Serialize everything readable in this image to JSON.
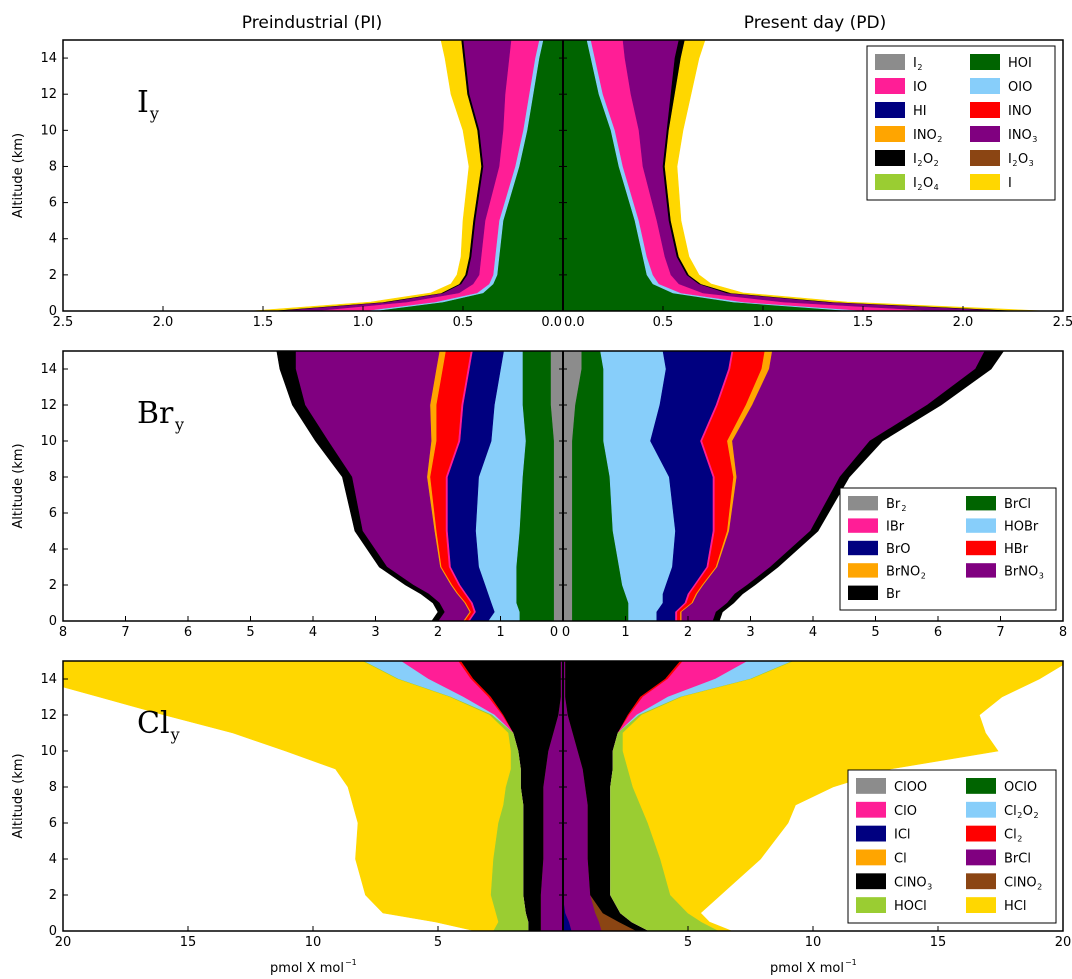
{
  "headers": {
    "left": "Preindustrial (PI)",
    "right": "Present day (PD)"
  },
  "chart_data": [
    {
      "type": "area",
      "panel_title": "I",
      "panel_sub": "y",
      "ylabel": "Altitude (km)",
      "xlabel": "",
      "xlim": 2.5,
      "ylim": [
        0,
        15
      ],
      "xticks": [
        "2.5",
        "2.0",
        "1.5",
        "1.0",
        "0.5",
        "0.0",
        "0.0",
        "0.5",
        "1.0",
        "1.5",
        "2.0",
        "2.5"
      ],
      "yticks": [
        "0",
        "2",
        "4",
        "6",
        "8",
        "10",
        "12",
        "14"
      ],
      "altitudes": [
        0,
        0.5,
        1,
        1.5,
        2,
        3,
        5,
        8,
        10,
        12,
        14,
        15
      ],
      "legend": [
        {
          "label": "I",
          "sub": "2",
          "color": "#8c8c8c"
        },
        {
          "label": "IO",
          "sub": "",
          "color": "#ff1e96"
        },
        {
          "label": "HI",
          "sub": "",
          "color": "#000080"
        },
        {
          "label": "INO",
          "sub": "2",
          "color": "#ffa500"
        },
        {
          "label": "I",
          "sub": "2",
          "label2": "O",
          "sub2": "2",
          "color": "#000000"
        },
        {
          "label": "I",
          "sub": "2",
          "label2": "O",
          "sub2": "4",
          "color": "#9acd32"
        },
        {
          "label": "HOI",
          "sub": "",
          "color": "#006400"
        },
        {
          "label": "OIO",
          "sub": "",
          "color": "#87cefa"
        },
        {
          "label": "INO",
          "sub": "",
          "color": "#ff0000"
        },
        {
          "label": "INO",
          "sub": "3",
          "color": "#800080"
        },
        {
          "label": "I",
          "sub": "2",
          "label2": "O",
          "sub2": "3",
          "color": "#8b4513"
        },
        {
          "label": "I",
          "sub": "",
          "color": "#ffd700"
        }
      ],
      "series": [
        {
          "name": "HOI",
          "color": "#006400",
          "pi": [
            0.95,
            0.6,
            0.4,
            0.35,
            0.33,
            0.32,
            0.3,
            0.22,
            0.18,
            0.15,
            0.12,
            0.1
          ],
          "pd": [
            1.45,
            0.85,
            0.55,
            0.45,
            0.42,
            0.4,
            0.36,
            0.28,
            0.24,
            0.18,
            0.14,
            0.12
          ]
        },
        {
          "name": "OIO",
          "color": "#87cefa",
          "pi": [
            0.05,
            0.04,
            0.03,
            0.02,
            0.02,
            0.02,
            0.02,
            0.02,
            0.02,
            0.02,
            0.02,
            0.02
          ],
          "pd": [
            0.08,
            0.05,
            0.04,
            0.03,
            0.03,
            0.02,
            0.02,
            0.02,
            0.02,
            0.02,
            0.02,
            0.02
          ]
        },
        {
          "name": "IO",
          "color": "#ff1e96",
          "pi": [
            0.25,
            0.14,
            0.09,
            0.08,
            0.07,
            0.07,
            0.07,
            0.08,
            0.1,
            0.12,
            0.13,
            0.14
          ],
          "pd": [
            0.35,
            0.2,
            0.11,
            0.1,
            0.09,
            0.09,
            0.09,
            0.1,
            0.12,
            0.14,
            0.15,
            0.16
          ]
        },
        {
          "name": "INO3",
          "color": "#800080",
          "pi": [
            0.2,
            0.1,
            0.08,
            0.06,
            0.06,
            0.05,
            0.05,
            0.08,
            0.12,
            0.18,
            0.22,
            0.24
          ],
          "pd": [
            0.38,
            0.22,
            0.12,
            0.1,
            0.08,
            0.06,
            0.06,
            0.1,
            0.14,
            0.2,
            0.25,
            0.28
          ]
        },
        {
          "name": "I2O2",
          "color": "#000000",
          "pi": [
            0.03,
            0.02,
            0.01,
            0.01,
            0.01,
            0.01,
            0.01,
            0.01,
            0.01,
            0.01,
            0.01,
            0.01
          ],
          "pd": [
            0.05,
            0.03,
            0.02,
            0.01,
            0.01,
            0.01,
            0.01,
            0.01,
            0.01,
            0.02,
            0.03,
            0.03
          ]
        },
        {
          "name": "I",
          "color": "#ffd700",
          "pi": [
            0.08,
            0.06,
            0.05,
            0.04,
            0.04,
            0.04,
            0.05,
            0.06,
            0.07,
            0.08,
            0.09,
            0.1
          ],
          "pd": [
            0.1,
            0.07,
            0.06,
            0.05,
            0.05,
            0.05,
            0.05,
            0.06,
            0.07,
            0.08,
            0.09,
            0.1
          ]
        }
      ]
    },
    {
      "type": "area",
      "panel_title": "Br",
      "panel_sub": "y",
      "ylabel": "Altitude (km)",
      "xlabel": "",
      "xlim": 8,
      "ylim": [
        0,
        15
      ],
      "xticks": [
        "8",
        "7",
        "6",
        "5",
        "4",
        "3",
        "2",
        "1",
        "0",
        "0",
        "1",
        "2",
        "3",
        "4",
        "5",
        "6",
        "7",
        "8"
      ],
      "yticks": [
        "0",
        "2",
        "4",
        "6",
        "8",
        "10",
        "12",
        "14"
      ],
      "altitudes": [
        0,
        0.5,
        1,
        1.5,
        2,
        3,
        5,
        8,
        10,
        12,
        14,
        15
      ],
      "legend": [
        {
          "label": "Br",
          "sub": "2",
          "color": "#8c8c8c"
        },
        {
          "label": "IBr",
          "sub": "",
          "color": "#ff1e96"
        },
        {
          "label": "BrO",
          "sub": "",
          "color": "#000080"
        },
        {
          "label": "BrNO",
          "sub": "2",
          "color": "#ffa500"
        },
        {
          "label": "Br",
          "sub": "",
          "color": "#000000"
        },
        {
          "label": "BrCl",
          "sub": "",
          "color": "#006400"
        },
        {
          "label": "HOBr",
          "sub": "",
          "color": "#87cefa"
        },
        {
          "label": "HBr",
          "sub": "",
          "color": "#ff0000"
        },
        {
          "label": "BrNO",
          "sub": "3",
          "color": "#800080"
        }
      ],
      "series": [
        {
          "name": "Br2",
          "color": "#8c8c8c",
          "pi": [
            0.15,
            0.15,
            0.15,
            0.15,
            0.15,
            0.15,
            0.15,
            0.15,
            0.15,
            0.2,
            0.2,
            0.2
          ],
          "pd": [
            0.15,
            0.15,
            0.15,
            0.15,
            0.15,
            0.15,
            0.15,
            0.15,
            0.15,
            0.2,
            0.3,
            0.3
          ]
        },
        {
          "name": "BrCl",
          "color": "#006400",
          "pi": [
            0.55,
            0.55,
            0.6,
            0.6,
            0.6,
            0.6,
            0.55,
            0.5,
            0.45,
            0.45,
            0.45,
            0.45
          ],
          "pd": [
            0.9,
            0.9,
            0.9,
            0.85,
            0.8,
            0.75,
            0.65,
            0.6,
            0.5,
            0.45,
            0.35,
            0.3
          ]
        },
        {
          "name": "HOBr",
          "color": "#87cefa",
          "pi": [
            0.5,
            0.4,
            0.4,
            0.45,
            0.5,
            0.6,
            0.7,
            0.7,
            0.55,
            0.45,
            0.35,
            0.3
          ],
          "pd": [
            0.45,
            0.45,
            0.55,
            0.6,
            0.7,
            0.85,
            1.0,
            0.95,
            0.75,
            0.9,
            1.0,
            1.0
          ]
        },
        {
          "name": "BrO",
          "color": "#000080",
          "pi": [
            0.3,
            0.3,
            0.3,
            0.35,
            0.4,
            0.45,
            0.45,
            0.5,
            0.5,
            0.5,
            0.5,
            0.5
          ],
          "pd": [
            0.3,
            0.3,
            0.35,
            0.4,
            0.45,
            0.55,
            0.6,
            0.7,
            0.8,
            0.9,
            1.0,
            1.1
          ]
        },
        {
          "name": "IBr",
          "color": "#ff1e96",
          "pi": [
            0.03,
            0.03,
            0.03,
            0.03,
            0.03,
            0.03,
            0.03,
            0.03,
            0.03,
            0.03,
            0.03,
            0.03
          ],
          "pd": [
            0.03,
            0.03,
            0.03,
            0.03,
            0.03,
            0.03,
            0.03,
            0.03,
            0.03,
            0.03,
            0.03,
            0.03
          ]
        },
        {
          "name": "HBr",
          "color": "#ff0000",
          "pi": [
            0.05,
            0.05,
            0.08,
            0.1,
            0.1,
            0.12,
            0.15,
            0.25,
            0.35,
            0.4,
            0.4,
            0.4
          ],
          "pd": [
            0.05,
            0.05,
            0.08,
            0.1,
            0.1,
            0.12,
            0.2,
            0.3,
            0.4,
            0.45,
            0.5,
            0.5
          ]
        },
        {
          "name": "BrNO2",
          "color": "#ffa500",
          "pi": [
            0.02,
            0.02,
            0.02,
            0.02,
            0.02,
            0.02,
            0.03,
            0.05,
            0.08,
            0.1,
            0.1,
            0.1
          ],
          "pd": [
            0.02,
            0.02,
            0.02,
            0.02,
            0.02,
            0.02,
            0.03,
            0.05,
            0.08,
            0.1,
            0.12,
            0.12
          ]
        },
        {
          "name": "BrNO3",
          "color": "#800080",
          "pi": [
            0.4,
            0.4,
            0.4,
            0.45,
            0.6,
            0.85,
            1.15,
            1.2,
            1.65,
            2.0,
            2.25,
            2.3
          ],
          "pd": [
            0.5,
            0.55,
            0.55,
            0.6,
            0.7,
            0.85,
            1.3,
            1.65,
            2.2,
            2.8,
            3.3,
            3.4
          ]
        },
        {
          "name": "Br",
          "color": "#000000",
          "pi": [
            0.1,
            0.1,
            0.1,
            0.12,
            0.12,
            0.12,
            0.12,
            0.15,
            0.2,
            0.2,
            0.25,
            0.3
          ],
          "pd": [
            0.1,
            0.1,
            0.1,
            0.12,
            0.12,
            0.12,
            0.12,
            0.15,
            0.2,
            0.22,
            0.25,
            0.3
          ]
        }
      ]
    },
    {
      "type": "area",
      "panel_title": "Cl",
      "panel_sub": "y",
      "ylabel": "Altitude (km)",
      "xlabel": "pmol X mol",
      "xlabel_sup": "−1",
      "xlim": 20,
      "ylim": [
        0,
        15
      ],
      "xticks": [
        "20",
        "15",
        "10",
        "5",
        "",
        "5",
        "10",
        "15",
        "20"
      ],
      "yticks": [
        "0",
        "2",
        "4",
        "6",
        "8",
        "10",
        "12",
        "14"
      ],
      "altitudes": [
        0,
        0.5,
        1,
        2,
        4,
        6,
        7,
        8,
        9,
        10,
        11,
        12,
        13,
        14,
        15
      ],
      "legend": [
        {
          "label": "ClOO",
          "sub": "",
          "color": "#8c8c8c"
        },
        {
          "label": "ClO",
          "sub": "",
          "color": "#ff1e96"
        },
        {
          "label": "ICl",
          "sub": "",
          "color": "#000080"
        },
        {
          "label": "Cl",
          "sub": "",
          "color": "#ffa500"
        },
        {
          "label": "ClNO",
          "sub": "3",
          "color": "#000000"
        },
        {
          "label": "HOCl",
          "sub": "",
          "color": "#9acd32"
        },
        {
          "label": "OClO",
          "sub": "",
          "color": "#006400"
        },
        {
          "label": "Cl",
          "sub": "2",
          "label2": "O",
          "sub2": "2",
          "color": "#87cefa"
        },
        {
          "label": "Cl",
          "sub": "2",
          "color": "#ff0000"
        },
        {
          "label": "BrCl",
          "sub": "",
          "color": "#800080"
        },
        {
          "label": "ClNO",
          "sub": "2",
          "color": "#8b4513"
        },
        {
          "label": "HCl",
          "sub": "",
          "color": "#ffd700"
        }
      ],
      "series": [
        {
          "name": "ICl",
          "color": "#000080",
          "pi": [
            0,
            0,
            0,
            0,
            0,
            0,
            0,
            0,
            0,
            0,
            0,
            0,
            0,
            0,
            0
          ],
          "pd": [
            0.35,
            0.25,
            0.1,
            0,
            0,
            0,
            0,
            0,
            0,
            0,
            0,
            0,
            0,
            0,
            0
          ]
        },
        {
          "name": "BrCl",
          "color": "#800080",
          "pi": [
            0.9,
            0.9,
            0.9,
            0.9,
            0.8,
            0.8,
            0.8,
            0.8,
            0.7,
            0.6,
            0.4,
            0.2,
            0.1,
            0.1,
            0.1
          ],
          "pd": [
            1.2,
            1.2,
            1.2,
            1.1,
            1.0,
            1.0,
            1.0,
            0.9,
            0.8,
            0.6,
            0.4,
            0.2,
            0.1,
            0.1,
            0.1
          ]
        },
        {
          "name": "ClNO2",
          "color": "#8b4513",
          "pi": [
            0,
            0,
            0,
            0,
            0,
            0,
            0,
            0,
            0,
            0,
            0,
            0,
            0,
            0,
            0
          ],
          "pd": [
            1.4,
            0.8,
            0.3,
            0,
            0,
            0,
            0,
            0,
            0,
            0,
            0,
            0,
            0,
            0,
            0
          ]
        },
        {
          "name": "ClNO3",
          "color": "#000000",
          "pi": [
            0.5,
            0.5,
            0.6,
            0.7,
            0.8,
            0.8,
            0.8,
            0.9,
            1.0,
            1.2,
            1.6,
            2.2,
            2.8,
            3.5,
            4.0
          ],
          "pd": [
            0.5,
            0.5,
            0.7,
            0.8,
            0.9,
            0.9,
            0.9,
            1.0,
            1.2,
            1.4,
            1.8,
            2.4,
            3.0,
            4.0,
            4.6
          ]
        },
        {
          "name": "Cl2",
          "color": "#ff0000",
          "pi": [
            0,
            0,
            0,
            0,
            0,
            0,
            0,
            0,
            0,
            0,
            0,
            0.05,
            0.1,
            0.1,
            0.1
          ],
          "pd": [
            0,
            0,
            0,
            0,
            0,
            0,
            0,
            0,
            0,
            0,
            0,
            0.05,
            0.1,
            0.1,
            0.1
          ]
        },
        {
          "name": "ClO",
          "color": "#ff1e96",
          "pi": [
            0,
            0,
            0,
            0,
            0,
            0,
            0,
            0,
            0,
            0,
            0,
            0.3,
            1.0,
            1.7,
            2.3
          ],
          "pd": [
            0,
            0,
            0,
            0,
            0,
            0,
            0,
            0,
            0,
            0,
            0,
            0.3,
            1.0,
            1.9,
            2.6
          ]
        },
        {
          "name": "Cl2O2",
          "color": "#87cefa",
          "pi": [
            0,
            0,
            0,
            0,
            0,
            0,
            0,
            0,
            0,
            0,
            0,
            0.1,
            0.5,
            1.2,
            1.5
          ],
          "pd": [
            0,
            0,
            0,
            0,
            0,
            0,
            0,
            0,
            0,
            0,
            0,
            0.1,
            0.5,
            1.4,
            1.8
          ]
        },
        {
          "name": "HOCl",
          "color": "#9acd32",
          "pi": [
            1.4,
            1.2,
            1.2,
            1.3,
            1.2,
            1.0,
            0.8,
            0.6,
            0.4,
            0.3,
            0.2,
            0.1,
            0.05,
            0.05,
            0.05
          ],
          "pd": [
            2.8,
            2.8,
            2.7,
            2.4,
            2.0,
            1.5,
            1.2,
            0.9,
            0.6,
            0.4,
            0.2,
            0.1,
            0.05,
            0.05,
            0.05
          ]
        },
        {
          "name": "HCl",
          "color": "#ffd700",
          "pi": [
            0.7,
            2.5,
            4.5,
            5.0,
            5.5,
            5.6,
            6.0,
            6.3,
            7.0,
            9.0,
            11.0,
            13.0,
            14.0,
            14.5,
            14.5
          ],
          "pd": [
            0.5,
            0.3,
            0.5,
            2.0,
            4.0,
            5.6,
            6.2,
            8.0,
            10.5,
            15.0,
            14.5,
            13.5,
            12.8,
            11.5,
            11.0
          ]
        }
      ]
    }
  ]
}
